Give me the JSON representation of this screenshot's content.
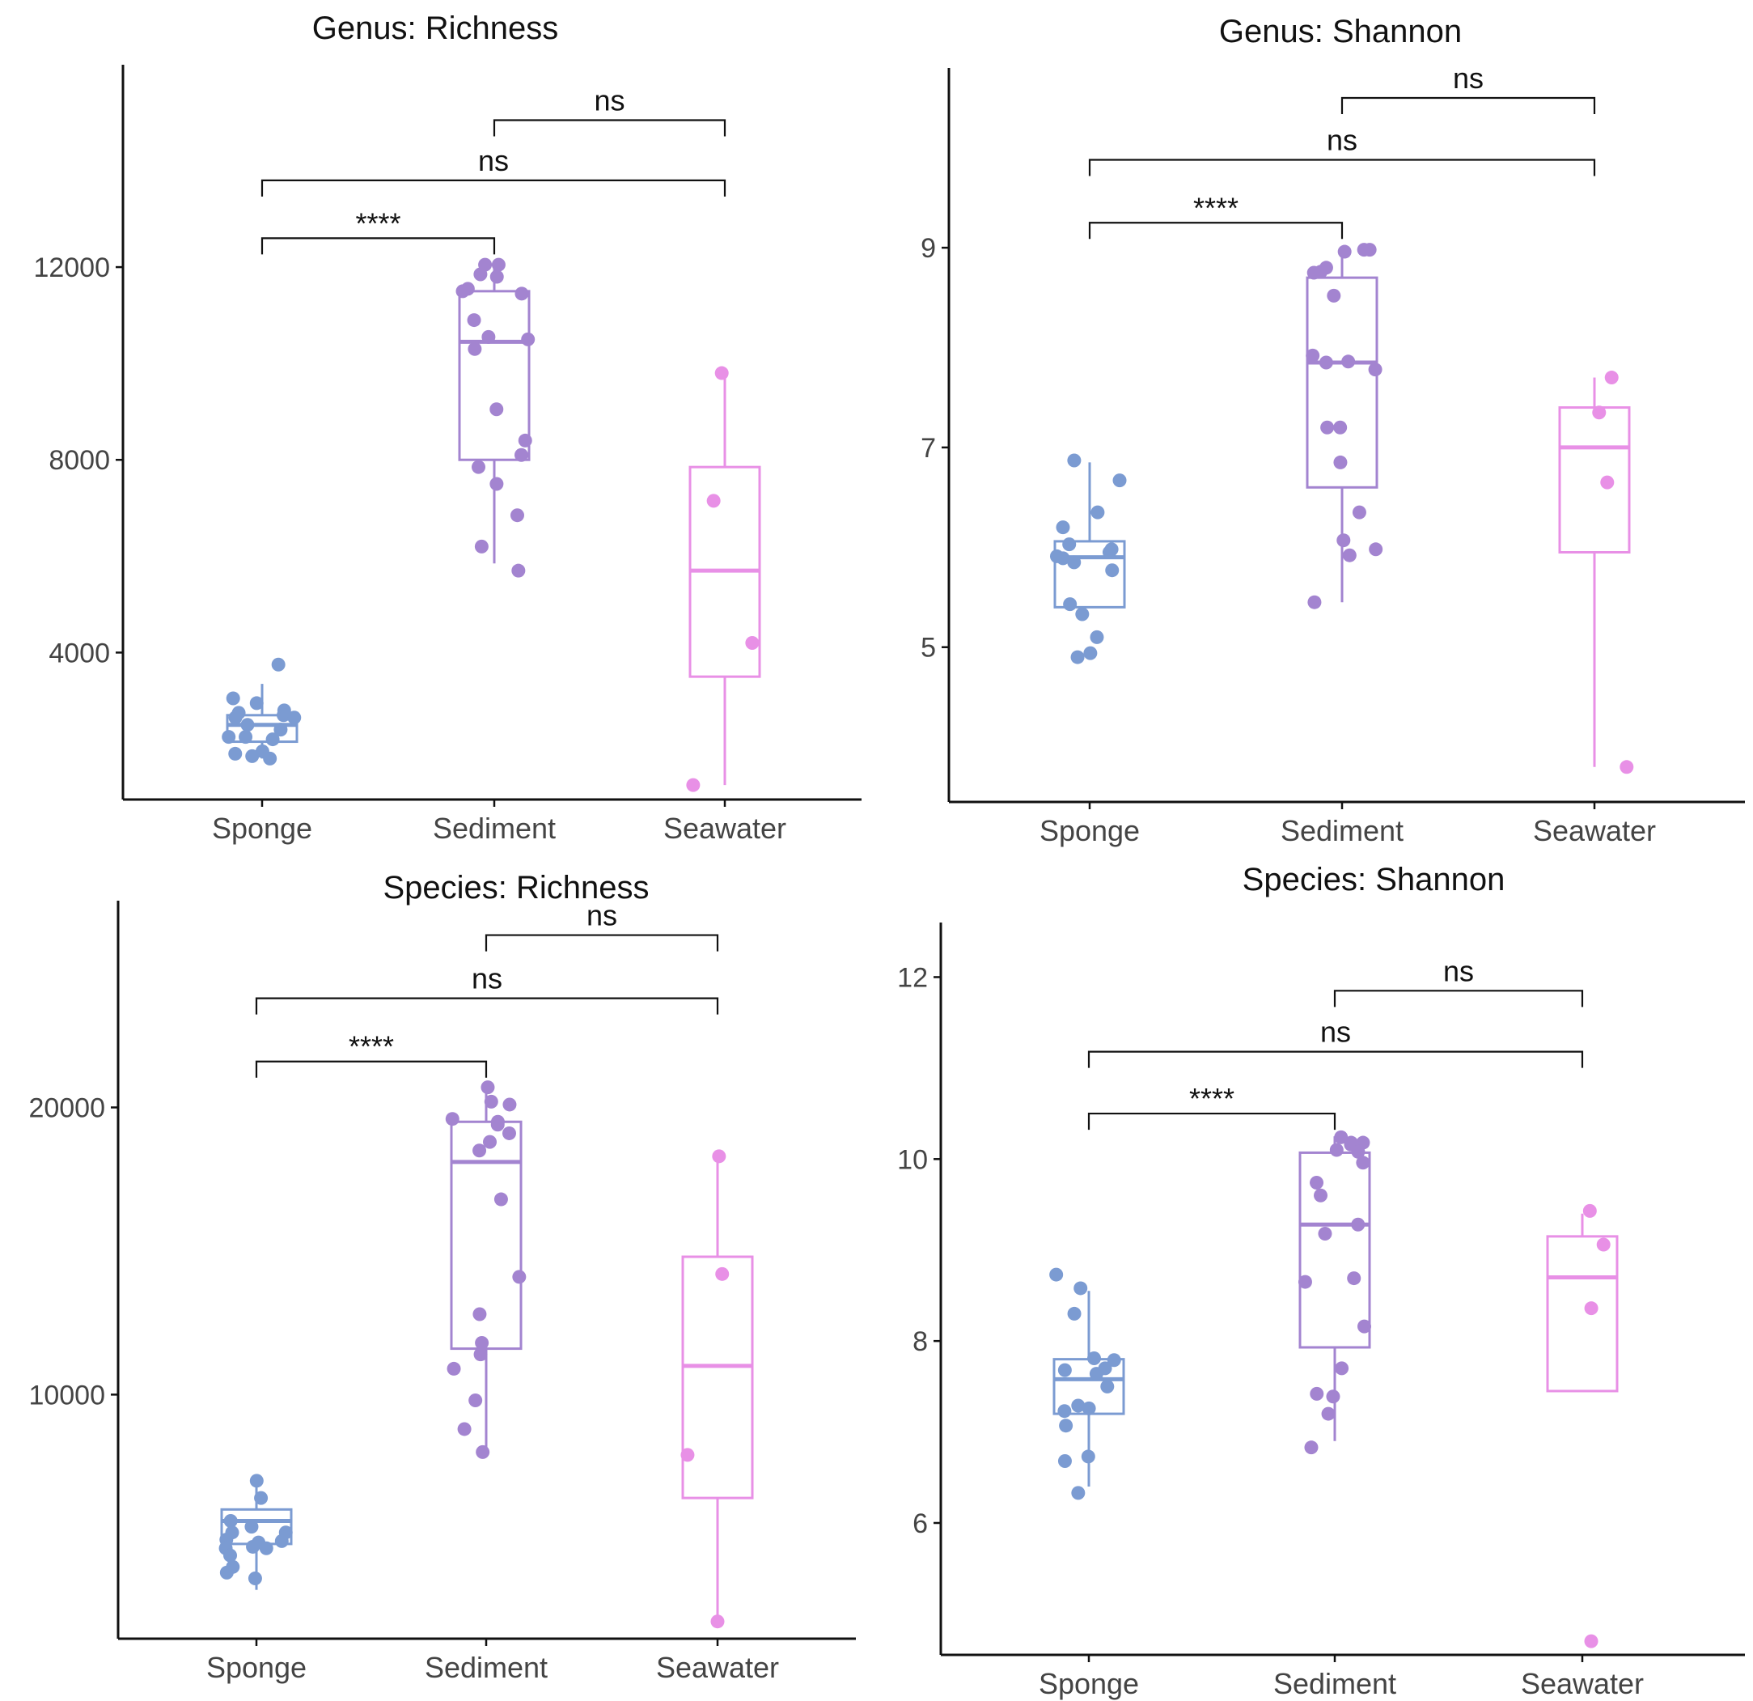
{
  "chart_data": [
    {
      "type": "box",
      "title": "Genus: Richness",
      "categories": [
        "Sponge",
        "Sediment",
        "Seawater"
      ],
      "colors": [
        "#7b9bd2",
        "#a384d0",
        "#e890e6"
      ],
      "ylim": [
        950,
        16200
      ],
      "yticks": [
        4000,
        8000,
        12000
      ],
      "yticklabels": [
        "4000",
        "8000",
        "12000"
      ],
      "boxes": [
        {
          "min": 1800,
          "q1": 2150,
          "median": 2500,
          "q3": 2700,
          "max": 3350
        },
        {
          "min": 5850,
          "q1": 8000,
          "median": 10450,
          "q3": 11500,
          "max": 12050
        },
        {
          "min": 1250,
          "q1": 3500,
          "median": 5700,
          "q3": 7850,
          "max": 9800
        }
      ],
      "points": [
        [
          3750,
          3050,
          2950,
          2800,
          2750,
          2700,
          2650,
          2650,
          2500,
          2400,
          2250,
          2250,
          2200,
          1950,
          1900,
          1850,
          1800
        ],
        [
          12050,
          12050,
          11850,
          11800,
          11550,
          11500,
          11450,
          10900,
          10550,
          10500,
          10300,
          9050,
          8400,
          8100,
          7850,
          7500,
          6850,
          6200,
          5700
        ],
        [
          9800,
          7150,
          4200,
          1250
        ]
      ],
      "comparisons": [
        {
          "groups": [
            "Sponge",
            "Sediment"
          ],
          "label": "****",
          "y": 12600
        },
        {
          "groups": [
            "Sponge",
            "Seawater"
          ],
          "label": "ns",
          "y": 13800
        },
        {
          "groups": [
            "Sediment",
            "Seawater"
          ],
          "label": "ns",
          "y": 15050
        }
      ]
    },
    {
      "type": "box",
      "title": "Genus: Shannon",
      "categories": [
        "Sponge",
        "Sediment",
        "Seawater"
      ],
      "colors": [
        "#7b9bd2",
        "#a384d0",
        "#e890e6"
      ],
      "ylim": [
        3.45,
        10.8
      ],
      "yticks": [
        5,
        7,
        9
      ],
      "yticklabels": [
        "5",
        "7",
        "9"
      ],
      "boxes": [
        {
          "min": 5.4,
          "q1": 5.4,
          "median": 5.9,
          "q3": 6.06,
          "max": 6.85
        },
        {
          "min": 5.45,
          "q1": 6.6,
          "median": 7.85,
          "q3": 8.7,
          "max": 9.0
        },
        {
          "min": 3.8,
          "q1": 5.95,
          "median": 7.0,
          "q3": 7.4,
          "max": 7.7
        }
      ],
      "points": [
        [
          6.87,
          6.67,
          6.35,
          6.2,
          6.03,
          5.98,
          5.95,
          5.91,
          5.89,
          5.85,
          5.77,
          5.43,
          5.33,
          5.1,
          4.94,
          4.9
        ],
        [
          8.98,
          8.96,
          8.98,
          8.8,
          8.76,
          8.75,
          8.52,
          7.92,
          7.86,
          7.85,
          7.78,
          7.2,
          7.2,
          6.85,
          6.35,
          6.07,
          5.98,
          5.92,
          5.45
        ],
        [
          7.7,
          7.35,
          6.65,
          3.8
        ]
      ],
      "comparisons": [
        {
          "groups": [
            "Sponge",
            "Sediment"
          ],
          "label": "****",
          "y": 9.25
        },
        {
          "groups": [
            "Sponge",
            "Seawater"
          ],
          "label": "ns",
          "y": 9.88
        },
        {
          "groups": [
            "Sediment",
            "Seawater"
          ],
          "label": "ns",
          "y": 10.5
        }
      ]
    },
    {
      "type": "box",
      "title": "Species: Richness",
      "categories": [
        "Sponge",
        "Sediment",
        "Seawater"
      ],
      "colors": [
        "#7b9bd2",
        "#a384d0",
        "#e890e6"
      ],
      "ylim": [
        1500,
        27200
      ],
      "yticks": [
        10000,
        20000
      ],
      "yticklabels": [
        "10000",
        "20000"
      ],
      "boxes": [
        {
          "min": 3200,
          "q1": 4800,
          "median": 5600,
          "q3": 6000,
          "max": 6900
        },
        {
          "min": 8000,
          "q1": 11600,
          "median": 18100,
          "q3": 19500,
          "max": 20700
        },
        {
          "min": 2000,
          "q1": 6400,
          "median": 11000,
          "q3": 14800,
          "max": 18200
        }
      ],
      "points": [
        [
          7000,
          6400,
          5600,
          5400,
          5200,
          5200,
          4950,
          4900,
          4850,
          4700,
          4650,
          4650,
          4400,
          4000,
          3800,
          3600
        ],
        [
          20700,
          20200,
          20100,
          19600,
          19500,
          19400,
          19100,
          18800,
          18500,
          16800,
          14100,
          12800,
          11800,
          11400,
          10900,
          9800,
          8800,
          8000
        ],
        [
          18300,
          14200,
          7900,
          2100
        ]
      ],
      "comparisons": [
        {
          "groups": [
            "Sponge",
            "Sediment"
          ],
          "label": "****",
          "y": 21600
        },
        {
          "groups": [
            "Sponge",
            "Seawater"
          ],
          "label": "ns",
          "y": 23800
        },
        {
          "groups": [
            "Sediment",
            "Seawater"
          ],
          "label": "ns",
          "y": 26000
        }
      ]
    },
    {
      "type": "box",
      "title": "Species: Shannon",
      "categories": [
        "Sponge",
        "Sediment",
        "Seawater"
      ],
      "colors": [
        "#7b9bd2",
        "#a384d0",
        "#e890e6"
      ],
      "ylim": [
        4.55,
        12.6
      ],
      "yticks": [
        6,
        8,
        10,
        12
      ],
      "yticklabels": [
        "6",
        "8",
        "10",
        "12"
      ],
      "boxes": [
        {
          "min": 6.4,
          "q1": 7.2,
          "median": 7.58,
          "q3": 7.8,
          "max": 8.55
        },
        {
          "min": 6.9,
          "q1": 7.93,
          "median": 9.28,
          "q3": 10.07,
          "max": 10.25
        },
        {
          "min": 7.45,
          "q1": 7.45,
          "median": 8.7,
          "q3": 9.15,
          "max": 9.4
        }
      ],
      "points": [
        [
          8.73,
          8.58,
          8.3,
          7.81,
          7.79,
          7.7,
          7.68,
          7.64,
          7.5,
          7.29,
          7.26,
          7.23,
          7.07,
          6.73,
          6.68,
          6.33
        ],
        [
          10.24,
          10.18,
          10.18,
          10.16,
          10.1,
          10.08,
          9.96,
          9.74,
          9.6,
          9.28,
          9.18,
          8.69,
          8.65,
          8.16,
          7.7,
          7.42,
          7.39,
          7.2,
          6.83
        ],
        [
          9.43,
          9.06,
          8.36,
          4.7
        ]
      ],
      "comparisons": [
        {
          "groups": [
            "Sponge",
            "Sediment"
          ],
          "label": "****",
          "y": 10.5
        },
        {
          "groups": [
            "Sponge",
            "Seawater"
          ],
          "label": "ns",
          "y": 11.18
        },
        {
          "groups": [
            "Sediment",
            "Seawater"
          ],
          "label": "ns",
          "y": 11.85
        }
      ]
    }
  ]
}
